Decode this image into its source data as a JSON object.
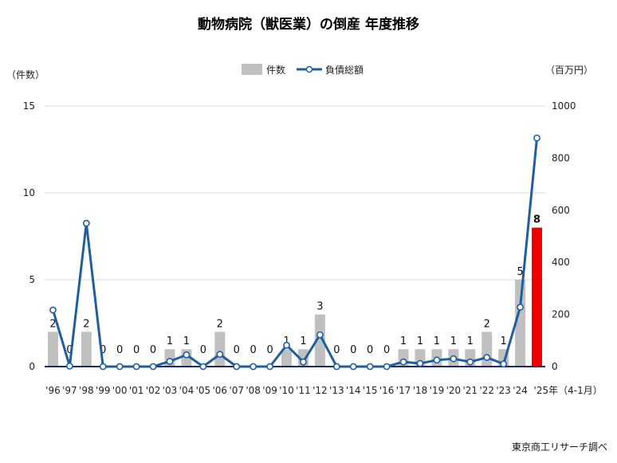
{
  "chart_data": {
    "type": "bar+line",
    "title": "動物病院（獣医業）の倒産 年度推移",
    "categories": [
      "'96",
      "'97",
      "'98",
      "'99",
      "'00",
      "'01",
      "'02",
      "'03",
      "'04",
      "'05",
      "'06",
      "'07",
      "'08",
      "'09",
      "'10",
      "'11",
      "'12",
      "'13",
      "'14",
      "'15",
      "'16",
      "'17",
      "'18",
      "'19",
      "'20",
      "'21",
      "'22",
      "'23",
      "'24",
      "'25年（4-1月）"
    ],
    "series": [
      {
        "name": "件数",
        "axis": "left",
        "chart_type": "bar",
        "color": "#c0c0c0",
        "highlight_color": "#ee0000",
        "values": [
          2,
          0,
          2,
          0,
          0,
          0,
          0,
          1,
          1,
          0,
          2,
          0,
          0,
          0,
          1,
          1,
          3,
          0,
          0,
          0,
          0,
          1,
          1,
          1,
          1,
          1,
          2,
          1,
          5,
          8
        ]
      },
      {
        "name": "負債総額",
        "axis": "right",
        "chart_type": "line",
        "color": "#1f5fa0",
        "values": [
          217,
          2,
          550,
          0,
          0,
          0,
          0,
          20,
          45,
          0,
          47,
          0,
          0,
          0,
          82,
          18,
          122,
          0,
          0,
          0,
          0,
          18,
          12,
          25,
          30,
          18,
          35,
          10,
          228,
          877
        ]
      }
    ],
    "left_axis": {
      "unit_label": "（件数）",
      "ylim": [
        0,
        15
      ],
      "ticks": [
        "0",
        "5",
        "10",
        "15"
      ]
    },
    "right_axis": {
      "unit_label": "（百万円）",
      "ylim": [
        0,
        1000
      ],
      "ticks": [
        "0",
        "200",
        "400",
        "600",
        "800",
        "1000"
      ]
    },
    "legend_position": "top-center",
    "grid": true,
    "source": "東京商工リサーチ調べ"
  }
}
